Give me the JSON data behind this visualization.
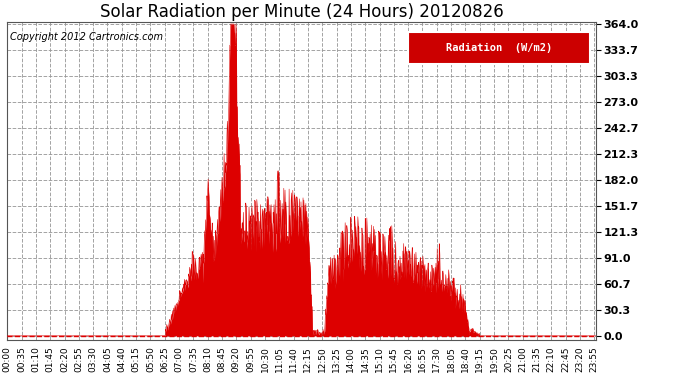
{
  "title": "Solar Radiation per Minute (24 Hours) 20120826",
  "copyright_text": "Copyright 2012 Cartronics.com",
  "legend_label": "Radiation  (W/m2)",
  "yticks": [
    0.0,
    30.3,
    60.7,
    91.0,
    121.3,
    151.7,
    182.0,
    212.3,
    242.7,
    273.0,
    303.3,
    333.7,
    364.0
  ],
  "ymax": 364.0,
  "ymin": 0.0,
  "fill_color": "#dd0000",
  "line_color": "#dd0000",
  "background_color": "#ffffff",
  "grid_color": "#999999",
  "dashed_line_color": "#dd0000",
  "title_fontsize": 12,
  "copyright_fontsize": 7,
  "legend_bg": "#cc0000",
  "legend_text_color": "#ffffff",
  "figwidth": 6.9,
  "figheight": 3.75,
  "dpi": 100
}
